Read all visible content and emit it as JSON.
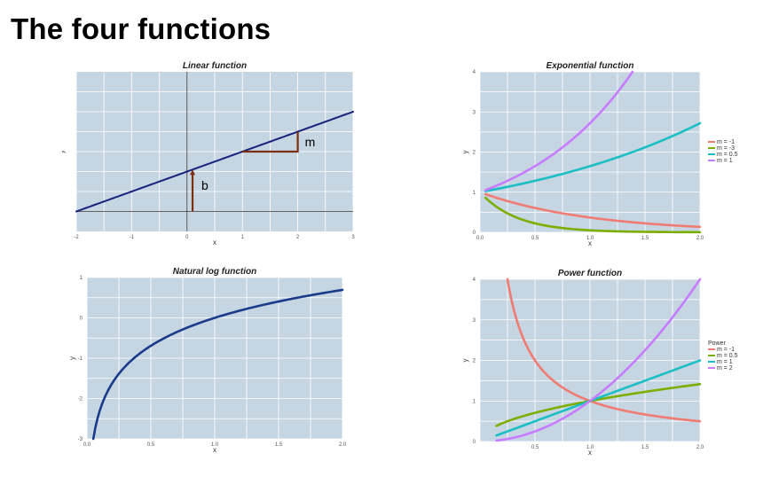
{
  "page": {
    "title": "The four functions"
  },
  "chart_data": [
    {
      "id": "linear",
      "type": "line",
      "title": "Linear function",
      "xlabel": "x",
      "ylabel": "y",
      "xlim": [
        -2,
        3
      ],
      "ylim": [
        -0.5,
        3.5
      ],
      "xticks": [
        "-2",
        "-1",
        "0",
        "1",
        "2",
        "3"
      ],
      "yticks": [],
      "line": {
        "slope": 0.5,
        "intercept": 1
      },
      "slope_triangle": {
        "x1": 1,
        "x2": 2
      },
      "annotations": [
        "m",
        "b"
      ],
      "colors": {
        "line": "#1a237e",
        "annotation": "#7b2e10",
        "panel": "#c6d5e2"
      }
    },
    {
      "id": "exponential",
      "type": "line",
      "title": "Exponential function",
      "xlabel": "x",
      "ylabel": "y",
      "xlim": [
        0,
        2
      ],
      "ylim": [
        0,
        4
      ],
      "xticks": [
        "0.0",
        "0.5",
        "1.0",
        "1.5",
        "2.0"
      ],
      "yticks": [
        "0",
        "1",
        "2",
        "3",
        "4"
      ],
      "legend": {
        "title": "",
        "placement": "right",
        "entries": [
          "m = -1",
          "m = -3",
          "m = 0.5",
          "m = 1"
        ]
      },
      "series": [
        {
          "name": "m = -1",
          "m": -1,
          "color": "#f07b72"
        },
        {
          "name": "m = -3",
          "m": -3,
          "color": "#7cae00"
        },
        {
          "name": "m = 0.5",
          "m": 0.5,
          "color": "#19bfc4"
        },
        {
          "name": "m = 1",
          "m": 1,
          "color": "#c77cff"
        }
      ]
    },
    {
      "id": "natural-log",
      "type": "line",
      "title": "Natural log function",
      "xlabel": "x",
      "ylabel": "y",
      "xlim": [
        0,
        2
      ],
      "ylim": [
        -3,
        1
      ],
      "xticks": [
        "0.0",
        "0.5",
        "1.0",
        "1.5",
        "2.0"
      ],
      "yticks": [
        "-3",
        "-2",
        "-1",
        "0",
        "1"
      ],
      "series": [
        {
          "name": "",
          "color": "#1a3a8a"
        }
      ]
    },
    {
      "id": "power",
      "type": "line",
      "title": "Power function",
      "xlabel": "x",
      "ylabel": "y",
      "xlim": [
        0,
        2
      ],
      "ylim": [
        0,
        4
      ],
      "xticks": [
        "0.5",
        "1.0",
        "1.5",
        "2.0"
      ],
      "yticks": [
        "0",
        "1",
        "2",
        "3",
        "4"
      ],
      "legend": {
        "title": "Power",
        "placement": "right",
        "entries": [
          "m = -1",
          "m = 0.5",
          "m = 1",
          "m = 2"
        ]
      },
      "series": [
        {
          "name": "m = -1",
          "m": -1,
          "color": "#f07b72"
        },
        {
          "name": "m = 0.5",
          "m": 0.5,
          "color": "#7cae00"
        },
        {
          "name": "m = 1",
          "m": 1,
          "color": "#19bfc4"
        },
        {
          "name": "m = 2",
          "m": 2,
          "color": "#c77cff"
        }
      ]
    }
  ]
}
